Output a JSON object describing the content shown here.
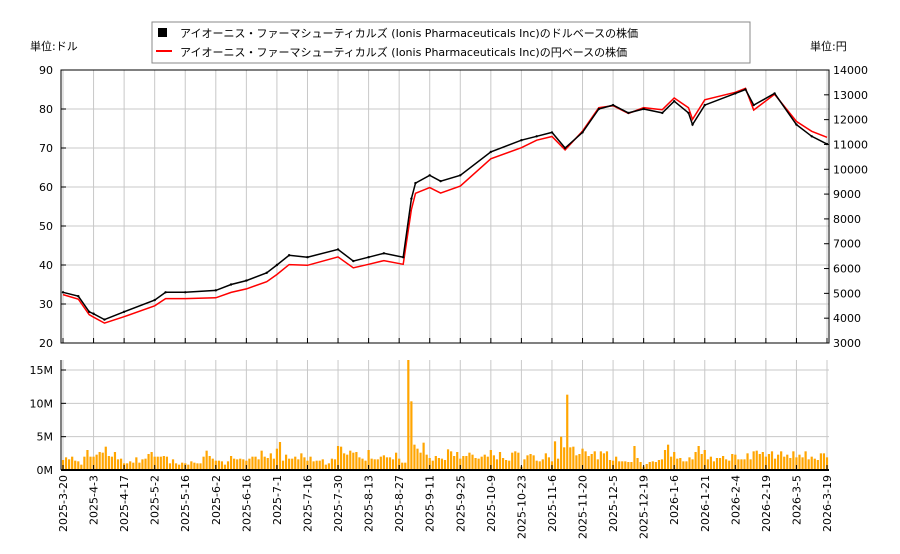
{
  "chart_data": [
    {
      "type": "line",
      "left_unit_label": "単位:ドル",
      "right_unit_label": "単位:円",
      "legend_placement": "top-center",
      "grid": true,
      "ylim_left": [
        20,
        90
      ],
      "ylim_right": [
        3000,
        14000
      ],
      "yticks_left": [
        "20",
        "30",
        "40",
        "50",
        "60",
        "70",
        "80",
        "90"
      ],
      "yticks_right": [
        "3000",
        "4000",
        "5000",
        "6000",
        "7000",
        "8000",
        "9000",
        "10000",
        "11000",
        "12000",
        "13000",
        "14000"
      ],
      "series": [
        {
          "name": "アイオーニス・ファーマシューティカルズ (Ionis Pharmaceuticals Inc)のドルベースの株価",
          "axis": "left",
          "color": "#000000",
          "legend_icon": "black-square"
        },
        {
          "name": "アイオーニス・ファーマシューティカルズ (Ionis Pharmaceuticals Inc)の円ベースの株価",
          "axis": "right",
          "color": "#ff0000",
          "legend_icon": "red-line"
        }
      ],
      "points": [
        {
          "date": "2025-3-20",
          "usd": 33,
          "jpy": 4950
        },
        {
          "date": "2025-3-27",
          "usd": 32,
          "jpy": 4770
        },
        {
          "date": "2025-4-1",
          "usd": 28,
          "jpy": 4140
        },
        {
          "date": "2025-4-3",
          "usd": 27.5,
          "jpy": 4040
        },
        {
          "date": "2025-4-8",
          "usd": 26,
          "jpy": 3800
        },
        {
          "date": "2025-4-17",
          "usd": 28,
          "jpy": 4060
        },
        {
          "date": "2025-5-2",
          "usd": 31,
          "jpy": 4500
        },
        {
          "date": "2025-5-7",
          "usd": 33,
          "jpy": 4790
        },
        {
          "date": "2025-5-16",
          "usd": 33,
          "jpy": 4790
        },
        {
          "date": "2025-6-2",
          "usd": 33.5,
          "jpy": 4820
        },
        {
          "date": "2025-6-9",
          "usd": 35,
          "jpy": 5040
        },
        {
          "date": "2025-6-16",
          "usd": 36,
          "jpy": 5180
        },
        {
          "date": "2025-6-26",
          "usd": 38,
          "jpy": 5470
        },
        {
          "date": "2025-7-1",
          "usd": 40,
          "jpy": 5760
        },
        {
          "date": "2025-7-7",
          "usd": 42.5,
          "jpy": 6160
        },
        {
          "date": "2025-7-16",
          "usd": 42,
          "jpy": 6130
        },
        {
          "date": "2025-7-30",
          "usd": 44,
          "jpy": 6470
        },
        {
          "date": "2025-8-6",
          "usd": 41,
          "jpy": 6030
        },
        {
          "date": "2025-8-13",
          "usd": 42,
          "jpy": 6170
        },
        {
          "date": "2025-8-20",
          "usd": 43,
          "jpy": 6320
        },
        {
          "date": "2025-8-29",
          "usd": 42,
          "jpy": 6170
        },
        {
          "date": "2025-9-2",
          "usd": 57,
          "jpy": 8380
        },
        {
          "date": "2025-9-4",
          "usd": 61,
          "jpy": 9030
        },
        {
          "date": "2025-9-11",
          "usd": 63,
          "jpy": 9260
        },
        {
          "date": "2025-9-16",
          "usd": 61.5,
          "jpy": 9040
        },
        {
          "date": "2025-9-25",
          "usd": 63,
          "jpy": 9320
        },
        {
          "date": "2025-10-9",
          "usd": 69,
          "jpy": 10420
        },
        {
          "date": "2025-10-23",
          "usd": 72,
          "jpy": 10870
        },
        {
          "date": "2025-10-30",
          "usd": 73,
          "jpy": 11170
        },
        {
          "date": "2025-11-6",
          "usd": 74,
          "jpy": 11320
        },
        {
          "date": "2025-11-12",
          "usd": 70,
          "jpy": 10780
        },
        {
          "date": "2025-11-20",
          "usd": 74,
          "jpy": 11540
        },
        {
          "date": "2025-11-28",
          "usd": 80,
          "jpy": 12480
        },
        {
          "date": "2025-12-5",
          "usd": 81,
          "jpy": 12560
        },
        {
          "date": "2025-12-12",
          "usd": 79,
          "jpy": 12250
        },
        {
          "date": "2025-12-19",
          "usd": 80,
          "jpy": 12480
        },
        {
          "date": "2025-12-30",
          "usd": 79,
          "jpy": 12400
        },
        {
          "date": "2026-1-6",
          "usd": 82,
          "jpy": 12870
        },
        {
          "date": "2026-1-13",
          "usd": 79,
          "jpy": 12480
        },
        {
          "date": "2026-1-15",
          "usd": 76,
          "jpy": 12010
        },
        {
          "date": "2026-1-21",
          "usd": 81,
          "jpy": 12800
        },
        {
          "date": "2026-2-4",
          "usd": 84,
          "jpy": 13100
        },
        {
          "date": "2026-2-9",
          "usd": 85,
          "jpy": 13260
        },
        {
          "date": "2026-2-13",
          "usd": 81,
          "jpy": 12390
        },
        {
          "date": "2026-2-23",
          "usd": 84,
          "jpy": 13020
        },
        {
          "date": "2026-3-5",
          "usd": 76,
          "jpy": 11930
        },
        {
          "date": "2026-3-12",
          "usd": 73,
          "jpy": 11530
        },
        {
          "date": "2026-3-19",
          "usd": 71,
          "jpy": 11290
        }
      ]
    },
    {
      "type": "bar",
      "color": "#ffa500",
      "ylim": [
        0,
        16.5
      ],
      "yticks": [
        "0M",
        "5M",
        "10M",
        "15M"
      ],
      "unit": "M",
      "xticks": [
        "2025-3-20",
        "2025-4-3",
        "2025-4-17",
        "2025-5-2",
        "2025-5-16",
        "2025-6-2",
        "2025-6-16",
        "2025-7-1",
        "2025-7-16",
        "2025-7-30",
        "2025-8-13",
        "2025-8-27",
        "2025-9-11",
        "2025-9-25",
        "2025-10-9",
        "2025-10-23",
        "2025-11-6",
        "2025-11-20",
        "2025-12-5",
        "2025-12-19",
        "2026-1-6",
        "2026-1-21",
        "2026-2-4",
        "2026-2-19",
        "2026-3-5",
        "2026-3-19"
      ],
      "volumes": [
        1.5,
        1.9,
        1.6,
        2.0,
        1.4,
        1.3,
        0.8,
        2.0,
        3.0,
        2.0,
        2.0,
        2.3,
        2.7,
        2.6,
        3.5,
        2.1,
        2.0,
        2.7,
        1.6,
        1.7,
        1.0,
        1.0,
        1.3,
        1.1,
        1.9,
        1.1,
        1.6,
        1.7,
        2.4,
        2.7,
        2.0,
        2.0,
        2.0,
        2.1,
        2.0,
        1.0,
        1.6,
        1.0,
        0.8,
        1.1,
        1.0,
        0.8,
        1.3,
        1.1,
        1.0,
        1.0,
        2.0,
        2.9,
        2.1,
        1.7,
        1.4,
        1.4,
        1.3,
        0.8,
        1.3,
        2.1,
        1.7,
        1.6,
        1.7,
        1.6,
        1.4,
        1.7,
        2.0,
        2.0,
        1.6,
        2.9,
        2.0,
        1.8,
        2.5,
        1.7,
        3.2,
        4.2,
        1.4,
        2.3,
        1.7,
        1.7,
        2.0,
        1.6,
        2.5,
        1.9,
        1.4,
        2.0,
        1.3,
        1.4,
        1.4,
        1.6,
        0.8,
        1.0,
        1.7,
        1.6,
        3.6,
        3.5,
        2.5,
        2.3,
        2.9,
        2.6,
        2.7,
        1.9,
        1.7,
        1.4,
        3.0,
        1.7,
        1.6,
        1.6,
        2.0,
        2.2,
        1.9,
        1.9,
        1.6,
        2.6,
        1.7,
        1.1,
        1.1,
        16.5,
        10.3,
        3.8,
        3.2,
        2.6,
        4.1,
        2.3,
        1.8,
        1.4,
        2.1,
        1.8,
        1.7,
        1.5,
        3.1,
        2.8,
        2.1,
        2.7,
        1.7,
        2.1,
        2.1,
        2.6,
        2.3,
        1.8,
        1.7,
        2.0,
        2.3,
        2.0,
        3.0,
        2.2,
        1.6,
        2.7,
        1.8,
        1.5,
        1.4,
        2.6,
        2.8,
        2.6,
        0.5,
        1.6,
        2.2,
        2.4,
        2.2,
        1.4,
        1.3,
        1.6,
        2.5,
        1.9,
        1.3,
        4.3,
        1.7,
        5.0,
        3.4,
        11.3,
        3.4,
        3.5,
        2.2,
        2.4,
        3.2,
        2.8,
        2.1,
        2.4,
        2.8,
        1.6,
        2.8,
        2.5,
        2.8,
        1.5,
        1.4,
        2.0,
        1.3,
        1.3,
        1.3,
        1.2,
        1.2,
        3.6,
        1.8,
        1.2,
        0.5,
        0.9,
        1.2,
        1.3,
        1.2,
        1.5,
        1.6,
        3.0,
        3.8,
        2.0,
        2.7,
        1.7,
        1.8,
        1.3,
        1.3,
        1.9,
        1.6,
        2.7,
        3.6,
        2.4,
        3.0,
        1.6,
        2.0,
        1.3,
        1.8,
        1.8,
        2.1,
        1.6,
        1.4,
        2.4,
        2.3,
        1.6,
        1.6,
        1.6,
        2.5,
        1.6,
        2.8,
        2.9,
        2.4,
        2.7,
        2.0,
        2.4,
        2.8,
        1.7,
        2.3,
        2.8,
        2.0,
        2.3,
        1.8,
        2.8,
        1.9,
        2.3,
        1.9,
        2.8,
        1.6,
        2.0,
        1.7,
        1.5,
        2.5,
        2.5,
        1.9
      ]
    }
  ]
}
